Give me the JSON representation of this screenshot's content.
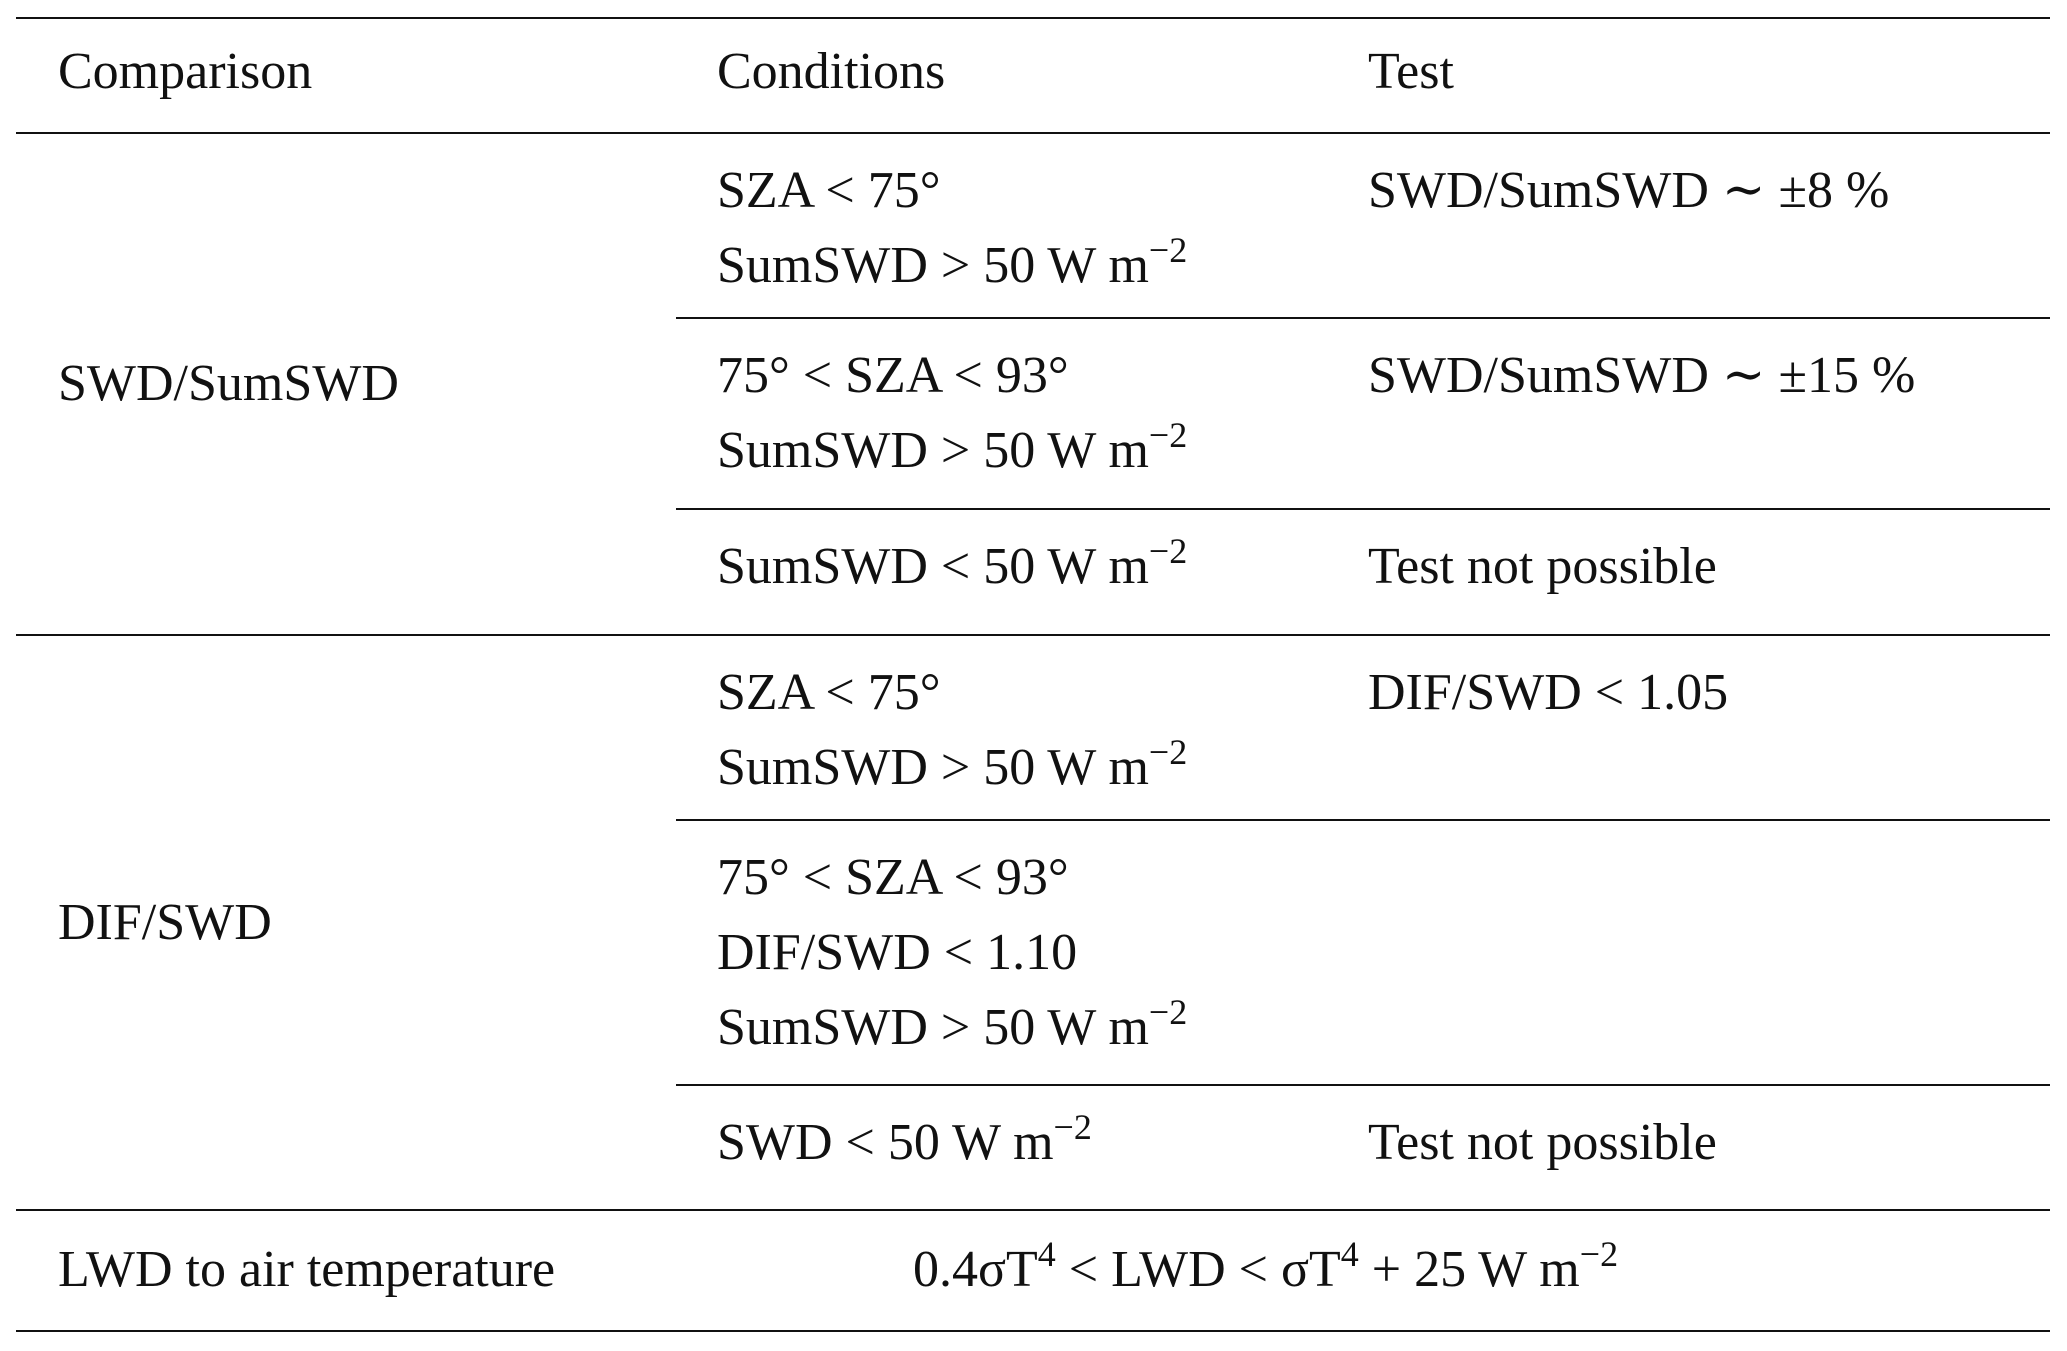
{
  "header": [
    "Comparison",
    "Conditions",
    "Test"
  ],
  "groups": [
    {
      "comparison": "SWD/SumSWD",
      "rows": [
        {
          "conditions": [
            [
              "SZA < 75°"
            ],
            [
              "SumSWD > 50 W m",
              "−2"
            ]
          ],
          "test": [
            [
              "SWD/SumSWD ∼ ±8 %"
            ]
          ]
        },
        {
          "conditions": [
            [
              "75° < SZA < 93°"
            ],
            [
              "SumSWD > 50 W m",
              "−2"
            ]
          ],
          "test": [
            [
              "SWD/SumSWD ∼ ±15 %"
            ]
          ]
        },
        {
          "conditions": [
            [
              "SumSWD < 50 W m",
              "−2"
            ]
          ],
          "test": [
            [
              "Test not possible"
            ]
          ]
        }
      ]
    },
    {
      "comparison": "DIF/SWD",
      "rows": [
        {
          "conditions": [
            [
              "SZA < 75°"
            ],
            [
              "SumSWD > 50 W m",
              "−2"
            ]
          ],
          "test": [
            [
              "DIF/SWD < 1.05"
            ]
          ]
        },
        {
          "conditions": [
            [
              "75° < SZA < 93°"
            ],
            [
              "DIF/SWD < 1.10"
            ],
            [
              "SumSWD > 50 W m",
              "−2"
            ]
          ],
          "test": []
        },
        {
          "conditions": [
            [
              "SWD < 50 W m",
              "−2"
            ]
          ],
          "test": [
            [
              "Test not possible"
            ]
          ]
        }
      ]
    }
  ],
  "last": {
    "comparison": "LWD to air temperature",
    "test": [
      "0.4σT",
      "4",
      " < LWD < σT",
      "4",
      " + 25 W m",
      "−2"
    ]
  }
}
